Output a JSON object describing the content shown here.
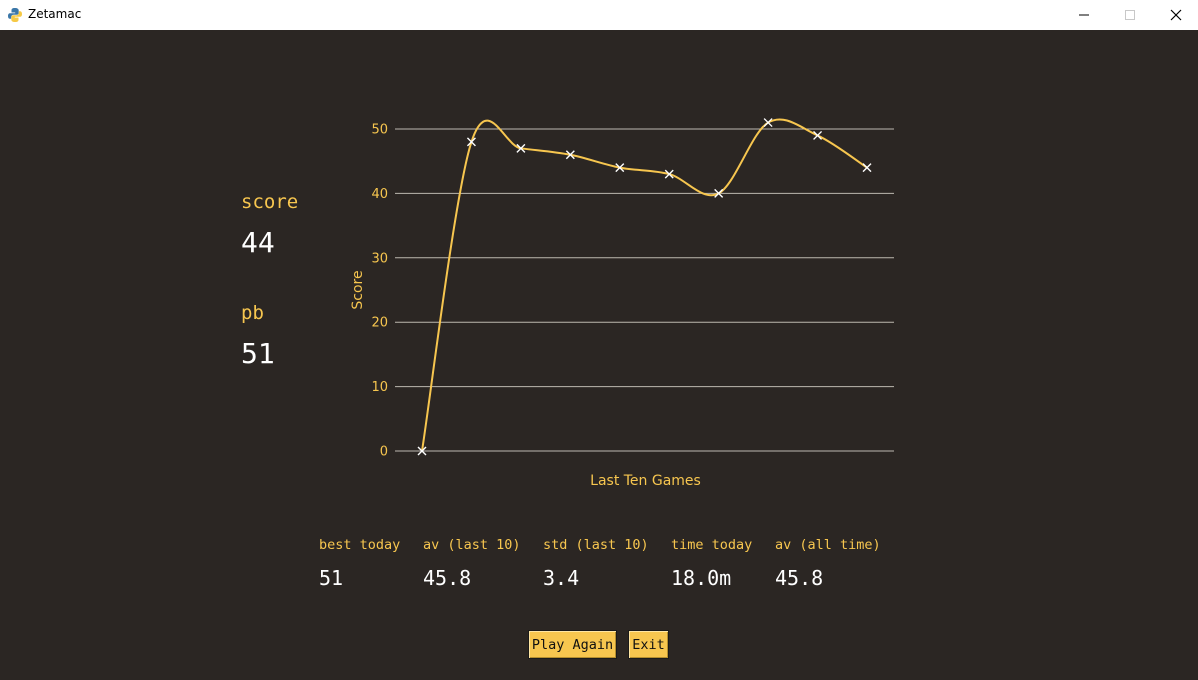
{
  "window": {
    "title": "Zetamac",
    "icon": "python-icon",
    "controls": [
      "minimize-icon",
      "maximize-icon",
      "close-icon"
    ]
  },
  "stats": {
    "score_label": "score",
    "score_value": "44",
    "pb_label": "pb",
    "pb_value": "51"
  },
  "chart_data": {
    "type": "line",
    "x": [
      1,
      2,
      3,
      4,
      5,
      6,
      7,
      8,
      9,
      10
    ],
    "values": [
      0,
      48,
      47,
      46,
      44,
      43,
      40,
      51,
      49,
      44
    ],
    "xlabel": "Last Ten Games",
    "ylabel": "Score",
    "ylim": [
      0,
      50
    ],
    "yticks": [
      "0",
      "10",
      "20",
      "30",
      "40",
      "50"
    ],
    "grid": "horizontal",
    "line_color": "#f7c64f",
    "marker": "x",
    "marker_color": "#ffffff",
    "smooth": true
  },
  "summary": [
    {
      "label": "best today",
      "value": "51"
    },
    {
      "label": "av (last 10)",
      "value": "45.8"
    },
    {
      "label": "std (last 10)",
      "value": "3.4"
    },
    {
      "label": "time today",
      "value": "18.0m"
    },
    {
      "label": "av (all time)",
      "value": "45.8"
    }
  ],
  "buttons": {
    "play_again": "Play Again",
    "exit": "Exit"
  },
  "colors": {
    "background": "#2b2623",
    "accent": "#f7c64f",
    "text": "#ffffff",
    "grid": "#bdb8b0"
  }
}
